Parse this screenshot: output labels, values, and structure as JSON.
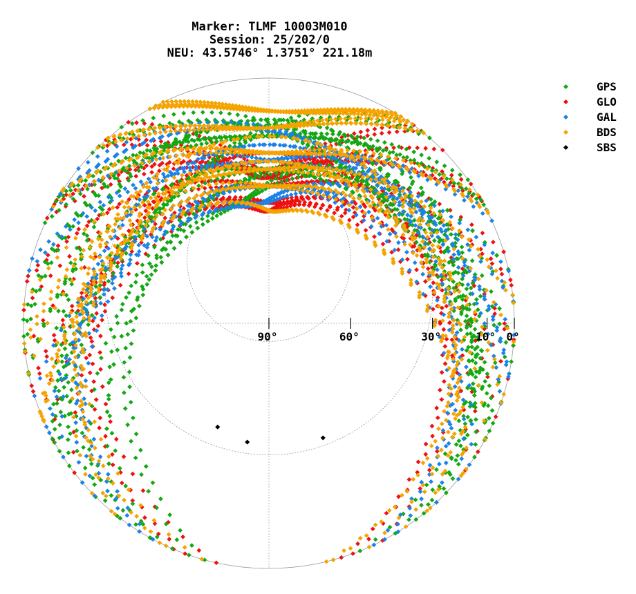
{
  "title_lines": [
    "Marker: TLMF 10003M010",
    "Session: 25/202/0",
    "NEU: 43.5746° 1.3751° 221.18m"
  ],
  "chart_data": {
    "type": "scatter",
    "plot": "polar skyplot (azimuth vs elevation)",
    "grid": true,
    "legend_position": "top-right",
    "elevation_tick_labels": [
      "90°",
      "60°",
      "30°",
      "10°",
      "0°"
    ],
    "elevation_ticks": [
      90,
      60,
      30,
      10,
      0
    ],
    "series": [
      {
        "name": "GPS",
        "color": "#14a814",
        "tracks": [
          {
            "az_start": 300,
            "az_end": 60,
            "el_peak": 35
          },
          {
            "az_start": 250,
            "az_end": 110,
            "el_peak": 55
          },
          {
            "az_start": 210,
            "az_end": 150,
            "el_peak": 25
          },
          {
            "az_start": 240,
            "az_end": 40,
            "el_peak": 45
          },
          {
            "az_start": 320,
            "az_end": 120,
            "el_peak": 40
          },
          {
            "az_start": 200,
            "az_end": 100,
            "el_peak": 60
          },
          {
            "az_start": 270,
            "az_end": 140,
            "el_peak": 30
          },
          {
            "az_start": 220,
            "az_end": 80,
            "el_peak": 70
          }
        ]
      },
      {
        "name": "GLO",
        "color": "#ee1111",
        "tracks": [
          {
            "az_start": 280,
            "az_end": 80,
            "el_peak": 65
          },
          {
            "az_start": 300,
            "az_end": 60,
            "el_peak": 55
          },
          {
            "az_start": 240,
            "az_end": 120,
            "el_peak": 75
          },
          {
            "az_start": 320,
            "az_end": 40,
            "el_peak": 60
          },
          {
            "az_start": 200,
            "az_end": 160,
            "el_peak": 45
          },
          {
            "az_start": 260,
            "az_end": 100,
            "el_peak": 80
          }
        ]
      },
      {
        "name": "GAL",
        "color": "#1a82e8",
        "tracks": [
          {
            "az_start": 290,
            "az_end": 70,
            "el_peak": 50
          },
          {
            "az_start": 230,
            "az_end": 130,
            "el_peak": 65
          },
          {
            "az_start": 210,
            "az_end": 150,
            "el_peak": 40
          },
          {
            "az_start": 250,
            "az_end": 90,
            "el_peak": 75
          },
          {
            "az_start": 310,
            "az_end": 110,
            "el_peak": 35
          }
        ]
      },
      {
        "name": "BDS",
        "color": "#f5a300",
        "tracks": [
          {
            "az_start": 300,
            "az_end": 60,
            "el_peak": 45
          },
          {
            "az_start": 250,
            "az_end": 110,
            "el_peak": 65
          },
          {
            "az_start": 220,
            "az_end": 140,
            "el_peak": 50
          },
          {
            "az_start": 320,
            "az_end": 40,
            "el_peak": 30
          },
          {
            "az_start": 270,
            "az_end": 90,
            "el_peak": 55
          },
          {
            "az_start": 200,
            "az_end": 160,
            "el_peak": 35
          },
          {
            "az_start": 240,
            "az_end": 120,
            "el_peak": 80
          },
          {
            "az_start": 330,
            "az_end": 30,
            "el_peak": 20
          }
        ]
      },
      {
        "name": "SBS",
        "color": "#000000",
        "points": [
          {
            "az": 200,
            "el": 35
          },
          {
            "az": 188,
            "el": 33
          },
          {
            "az": 160,
            "el": 32
          }
        ]
      }
    ]
  }
}
